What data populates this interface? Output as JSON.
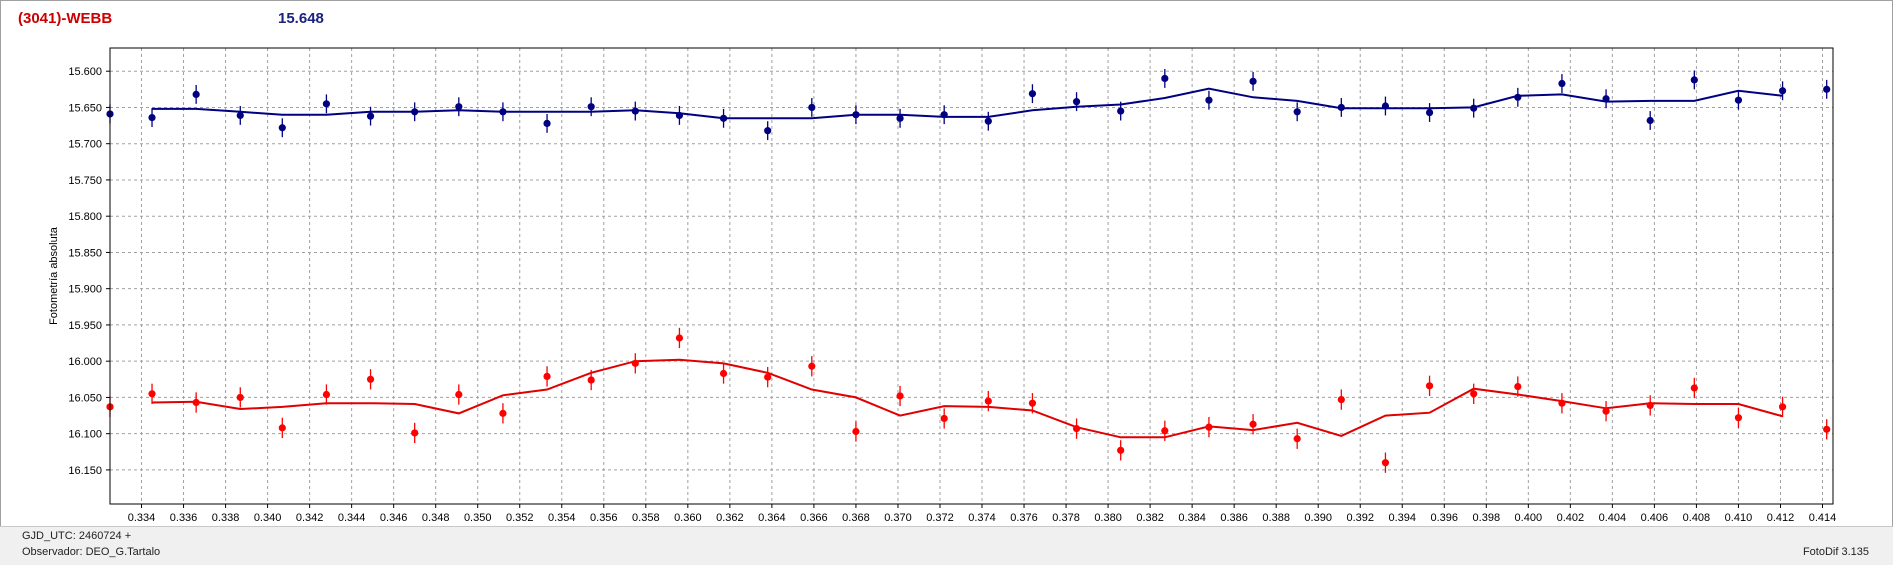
{
  "header": {
    "object_label": "(3041)-WEBB",
    "mean_value": "15.648"
  },
  "footer": {
    "gjd": "GJD_UTC: 2460724 +",
    "observer": "Observador: DEO_G.Tartalo",
    "software": "FotoDif 3.135"
  },
  "colors": {
    "blue_series": "#000080",
    "red_series": "#ff0000",
    "red_line": "#e00000",
    "grid": "#a0a0a0"
  },
  "chart_data": {
    "type": "scatter",
    "title": "",
    "ylabel": "Fotometría absoluta",
    "xlabel": "",
    "xlim": [
      0.3325,
      0.4145
    ],
    "ylim": [
      15.568,
      16.197
    ],
    "y_inverted": true,
    "grid": true,
    "xticks": [
      0.334,
      0.336,
      0.338,
      0.34,
      0.342,
      0.344,
      0.346,
      0.348,
      0.35,
      0.352,
      0.354,
      0.356,
      0.358,
      0.36,
      0.362,
      0.364,
      0.366,
      0.368,
      0.37,
      0.372,
      0.374,
      0.376,
      0.378,
      0.38,
      0.382,
      0.384,
      0.386,
      0.388,
      0.39,
      0.392,
      0.394,
      0.396,
      0.398,
      0.4,
      0.402,
      0.404,
      0.406,
      0.408,
      0.41,
      0.412,
      0.414
    ],
    "xtick_labels": [
      "0.334",
      "0.336",
      "0.338",
      "0.340",
      "0.342",
      "0.344",
      "0.346",
      "0.348",
      "0.350",
      "0.352",
      "0.354",
      "0.356",
      "0.358",
      "0.360",
      "0.362",
      "0.364",
      "0.366",
      "0.368",
      "0.370",
      "0.372",
      "0.374",
      "0.376",
      "0.378",
      "0.380",
      "0.382",
      "0.384",
      "0.386",
      "0.388",
      "0.390",
      "0.392",
      "0.394",
      "0.396",
      "0.398",
      "0.400",
      "0.402",
      "0.404",
      "0.406",
      "0.408",
      "0.410",
      "0.412",
      "0.414"
    ],
    "yticks": [
      15.6,
      15.65,
      15.7,
      15.75,
      15.8,
      15.85,
      15.9,
      15.95,
      16.0,
      16.05,
      16.1,
      16.15
    ],
    "ytick_labels": [
      "15.600",
      "15.650",
      "15.700",
      "15.750",
      "15.800",
      "15.850",
      "15.900",
      "15.950",
      "16.000",
      "16.050",
      "16.100",
      "16.150"
    ],
    "series": [
      {
        "color": "#000080",
        "error": 0.013,
        "points": [
          [
            0.3325,
            15.659
          ],
          [
            0.3345,
            15.664
          ],
          [
            0.3366,
            15.632
          ],
          [
            0.3387,
            15.661
          ],
          [
            0.3407,
            15.678
          ],
          [
            0.3428,
            15.645
          ],
          [
            0.3449,
            15.662
          ],
          [
            0.347,
            15.656
          ],
          [
            0.3491,
            15.649
          ],
          [
            0.3512,
            15.656
          ],
          [
            0.3533,
            15.672
          ],
          [
            0.3554,
            15.649
          ],
          [
            0.3575,
            15.655
          ],
          [
            0.3596,
            15.661
          ],
          [
            0.3617,
            15.665
          ],
          [
            0.3638,
            15.682
          ],
          [
            0.3659,
            15.65
          ],
          [
            0.368,
            15.66
          ],
          [
            0.3701,
            15.665
          ],
          [
            0.3722,
            15.66
          ],
          [
            0.3743,
            15.669
          ],
          [
            0.3764,
            15.631
          ],
          [
            0.3785,
            15.642
          ],
          [
            0.3806,
            15.655
          ],
          [
            0.3827,
            15.61
          ],
          [
            0.3848,
            15.64
          ],
          [
            0.3869,
            15.614
          ],
          [
            0.389,
            15.656
          ],
          [
            0.3911,
            15.65
          ],
          [
            0.3932,
            15.648
          ],
          [
            0.3953,
            15.657
          ],
          [
            0.3974,
            15.651
          ],
          [
            0.3995,
            15.636
          ],
          [
            0.4016,
            15.617
          ],
          [
            0.4037,
            15.638
          ],
          [
            0.4058,
            15.668
          ],
          [
            0.4079,
            15.612
          ],
          [
            0.41,
            15.64
          ],
          [
            0.4121,
            15.627
          ],
          [
            0.4142,
            15.625
          ]
        ],
        "trend": [
          [
            0.3345,
            15.652
          ],
          [
            0.3366,
            15.652
          ],
          [
            0.3387,
            15.656
          ],
          [
            0.3407,
            15.66
          ],
          [
            0.3428,
            15.66
          ],
          [
            0.3449,
            15.656
          ],
          [
            0.347,
            15.656
          ],
          [
            0.3491,
            15.654
          ],
          [
            0.3512,
            15.656
          ],
          [
            0.3533,
            15.656
          ],
          [
            0.3554,
            15.656
          ],
          [
            0.3575,
            15.654
          ],
          [
            0.3596,
            15.658
          ],
          [
            0.3617,
            15.665
          ],
          [
            0.3638,
            15.665
          ],
          [
            0.3659,
            15.665
          ],
          [
            0.368,
            15.66
          ],
          [
            0.3701,
            15.66
          ],
          [
            0.3722,
            15.663
          ],
          [
            0.3743,
            15.663
          ],
          [
            0.3764,
            15.654
          ],
          [
            0.3785,
            15.649
          ],
          [
            0.3806,
            15.646
          ],
          [
            0.3827,
            15.637
          ],
          [
            0.3848,
            15.624
          ],
          [
            0.3869,
            15.636
          ],
          [
            0.389,
            15.641
          ],
          [
            0.3911,
            15.651
          ],
          [
            0.3932,
            15.651
          ],
          [
            0.3953,
            15.651
          ],
          [
            0.3974,
            15.65
          ],
          [
            0.3995,
            15.634
          ],
          [
            0.4016,
            15.632
          ],
          [
            0.4037,
            15.642
          ],
          [
            0.4058,
            15.641
          ],
          [
            0.4079,
            15.641
          ],
          [
            0.41,
            15.627
          ],
          [
            0.4121,
            15.634
          ]
        ]
      },
      {
        "color": "#ff0000",
        "error": 0.014,
        "points": [
          [
            0.3325,
            16.063
          ],
          [
            0.3345,
            16.045
          ],
          [
            0.3366,
            16.057
          ],
          [
            0.3387,
            16.05
          ],
          [
            0.3407,
            16.092
          ],
          [
            0.3428,
            16.046
          ],
          [
            0.3449,
            16.025
          ],
          [
            0.347,
            16.099
          ],
          [
            0.3491,
            16.046
          ],
          [
            0.3512,
            16.072
          ],
          [
            0.3533,
            16.021
          ],
          [
            0.3554,
            16.026
          ],
          [
            0.3575,
            16.003
          ],
          [
            0.3596,
            15.968
          ],
          [
            0.3617,
            16.017
          ],
          [
            0.3638,
            16.022
          ],
          [
            0.3659,
            16.007
          ],
          [
            0.368,
            16.097
          ],
          [
            0.3701,
            16.048
          ],
          [
            0.3722,
            16.079
          ],
          [
            0.3743,
            16.055
          ],
          [
            0.3764,
            16.058
          ],
          [
            0.3785,
            16.093
          ],
          [
            0.3806,
            16.123
          ],
          [
            0.3827,
            16.096
          ],
          [
            0.3848,
            16.091
          ],
          [
            0.3869,
            16.087
          ],
          [
            0.389,
            16.107
          ],
          [
            0.3911,
            16.053
          ],
          [
            0.3932,
            16.14
          ],
          [
            0.3953,
            16.034
          ],
          [
            0.3974,
            16.045
          ],
          [
            0.3995,
            16.035
          ],
          [
            0.4016,
            16.058
          ],
          [
            0.4037,
            16.069
          ],
          [
            0.4058,
            16.061
          ],
          [
            0.4079,
            16.037
          ],
          [
            0.41,
            16.078
          ],
          [
            0.4121,
            16.063
          ],
          [
            0.4142,
            16.094
          ]
        ],
        "trend": [
          [
            0.3345,
            16.057
          ],
          [
            0.3366,
            16.056
          ],
          [
            0.3387,
            16.066
          ],
          [
            0.3407,
            16.063
          ],
          [
            0.3428,
            16.058
          ],
          [
            0.3449,
            16.058
          ],
          [
            0.347,
            16.059
          ],
          [
            0.3491,
            16.072
          ],
          [
            0.3512,
            16.047
          ],
          [
            0.3533,
            16.039
          ],
          [
            0.3554,
            16.016
          ],
          [
            0.3575,
            16.0
          ],
          [
            0.3596,
            15.998
          ],
          [
            0.3617,
            16.003
          ],
          [
            0.3638,
            16.016
          ],
          [
            0.3659,
            16.039
          ],
          [
            0.368,
            16.05
          ],
          [
            0.3701,
            16.075
          ],
          [
            0.3722,
            16.062
          ],
          [
            0.3743,
            16.063
          ],
          [
            0.3764,
            16.068
          ],
          [
            0.3785,
            16.091
          ],
          [
            0.3806,
            16.105
          ],
          [
            0.3827,
            16.105
          ],
          [
            0.3848,
            16.09
          ],
          [
            0.3869,
            16.095
          ],
          [
            0.389,
            16.085
          ],
          [
            0.3911,
            16.103
          ],
          [
            0.3932,
            16.075
          ],
          [
            0.3953,
            16.071
          ],
          [
            0.3974,
            16.038
          ],
          [
            0.3995,
            16.046
          ],
          [
            0.4016,
            16.055
          ],
          [
            0.4037,
            16.065
          ],
          [
            0.4058,
            16.058
          ],
          [
            0.4079,
            16.059
          ],
          [
            0.41,
            16.059
          ],
          [
            0.4121,
            16.076
          ]
        ]
      }
    ]
  }
}
